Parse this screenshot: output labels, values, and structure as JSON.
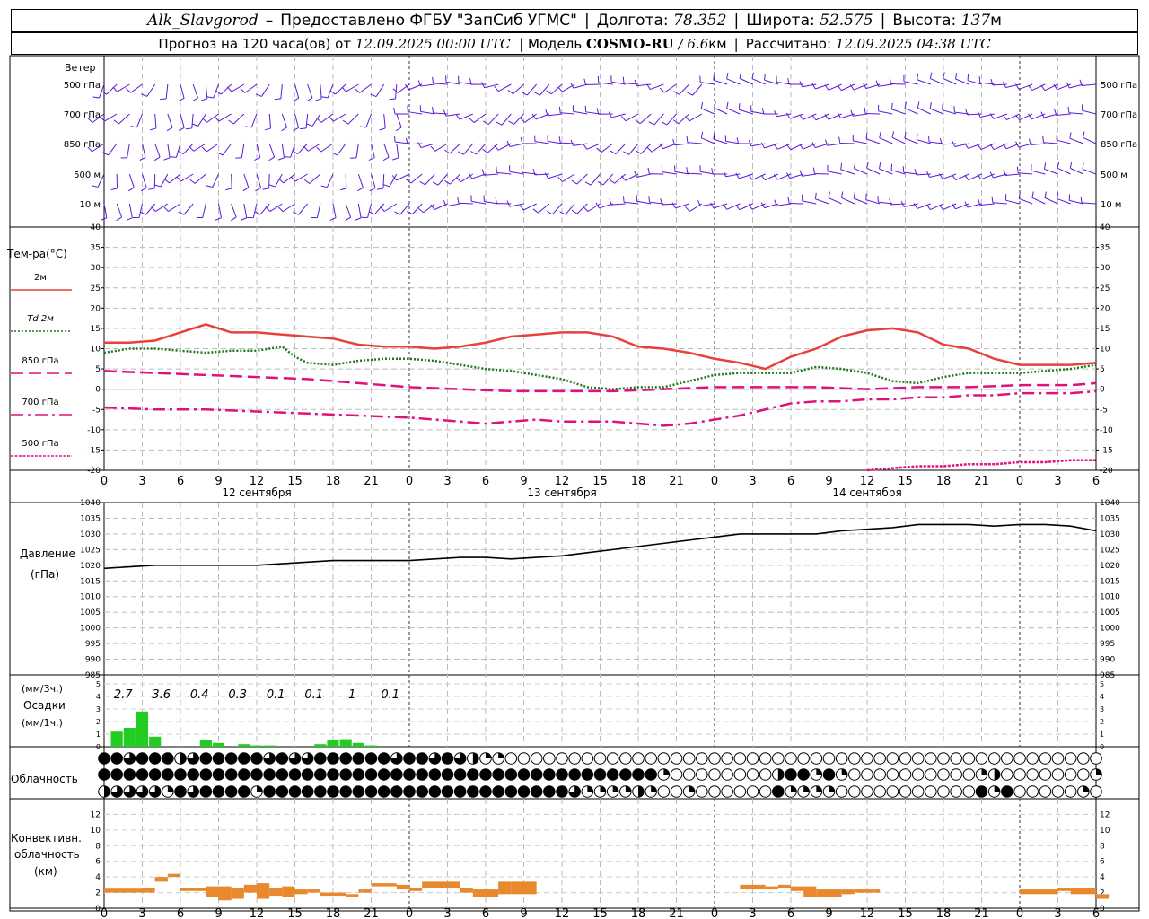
{
  "header": {
    "station": "Alk_Slavgorod",
    "dash": "–",
    "provider": "Предоставлено ФГБУ \"ЗапСиб УГМС\"",
    "lon_label": "Долгота:",
    "lon": "78.352",
    "lat_label": "Широта:",
    "lat": "52.575",
    "alt_label": "Высота:",
    "alt": "137",
    "alt_unit": "м",
    "forecast_label": "Прогноз на 120 часа(ов) от",
    "start": "12.09.2025 00:00 UTC",
    "model_label": "| Модель",
    "model": "COSMO-RU",
    "resolution": "/ 6.6",
    "res_unit": "км",
    "calc_label": "Рассчитано:",
    "calc": "12.09.2025 04:38 UTC"
  },
  "chart_data": [
    {
      "type": "wind-barbs",
      "title": "Ветер",
      "levels": [
        "500 гПа",
        "700 гПа",
        "850 гПа",
        "500 м",
        "10  м"
      ]
    },
    {
      "type": "line",
      "ylabel": "Тем-ра(°C)",
      "ylim": [
        -20,
        40
      ],
      "yticks": [
        40,
        35,
        30,
        25,
        20,
        15,
        10,
        5,
        0,
        -5,
        -10,
        -15,
        -20
      ],
      "xticks": [
        "0",
        "3",
        "6",
        "9",
        "12",
        "15",
        "18",
        "21",
        "0",
        "3",
        "6",
        "9",
        "12",
        "15",
        "18",
        "21",
        "0",
        "3",
        "6",
        "9",
        "12",
        "15",
        "18",
        "21",
        "0",
        "3",
        "6"
      ],
      "dates": [
        "12 сентября",
        "13 сентября",
        "14 сентября"
      ],
      "series": [
        {
          "name": "2м",
          "color": "#e8413c",
          "style": "solid",
          "x": [
            0,
            2,
            4,
            6,
            8,
            10,
            12,
            14,
            16,
            18,
            20,
            22,
            24,
            26,
            28,
            30,
            32,
            34,
            36,
            38,
            40,
            42,
            44,
            46,
            48,
            50,
            52,
            54,
            56,
            58,
            60,
            62,
            64,
            66,
            68,
            70,
            72,
            74,
            76,
            78
          ],
          "y": [
            11.5,
            11.5,
            12,
            14,
            16,
            14,
            14,
            13.5,
            13,
            12.5,
            11,
            10.5,
            10.5,
            10,
            10.5,
            11.5,
            13,
            13.5,
            14,
            14,
            13,
            10.5,
            10,
            9,
            7.5,
            6.5,
            5,
            8,
            10,
            13,
            14.5,
            15,
            14,
            11,
            10,
            7.5,
            6,
            6,
            6,
            6.5
          ]
        },
        {
          "name": "Td 2м",
          "color": "#1a7a1a",
          "style": "dot",
          "x": [
            0,
            2,
            4,
            6,
            8,
            10,
            12,
            14,
            15,
            16,
            18,
            20,
            22,
            24,
            26,
            28,
            30,
            32,
            34,
            36,
            38,
            40,
            42,
            44,
            46,
            48,
            50,
            52,
            54,
            56,
            58,
            60,
            62,
            64,
            66,
            68,
            70,
            72,
            74,
            76,
            78
          ],
          "y": [
            9,
            10,
            10,
            9.5,
            9,
            9.5,
            9.5,
            10.5,
            8,
            6.5,
            6,
            7,
            7.5,
            7.5,
            7,
            6,
            5,
            4.5,
            3.5,
            2.5,
            0.5,
            0,
            0.5,
            0.5,
            2,
            3.5,
            4,
            4,
            4,
            5.5,
            5,
            4,
            2,
            1.5,
            3,
            4,
            4,
            4,
            4.5,
            5,
            6
          ]
        },
        {
          "name": "850 гПа",
          "color": "#e0117f",
          "style": "dash",
          "x": [
            0,
            4,
            8,
            12,
            16,
            20,
            24,
            28,
            32,
            36,
            40,
            44,
            48,
            52,
            56,
            60,
            64,
            68,
            72,
            76,
            78
          ],
          "y": [
            4.5,
            4,
            3.5,
            3,
            2.5,
            1.5,
            0.5,
            0,
            -0.5,
            -0.5,
            -0.5,
            0,
            0.5,
            0.5,
            0.5,
            0,
            0.5,
            0.5,
            1,
            1,
            1.5
          ]
        },
        {
          "name": "700 гПа",
          "color": "#e0117f",
          "style": "dashdot",
          "x": [
            0,
            4,
            8,
            12,
            16,
            20,
            24,
            28,
            30,
            32,
            34,
            36,
            38,
            40,
            42,
            44,
            46,
            48,
            50,
            52,
            54,
            56,
            58,
            60,
            62,
            64,
            66,
            68,
            70,
            72,
            74,
            76,
            78
          ],
          "y": [
            -4.5,
            -5,
            -5,
            -5.5,
            -6,
            -6.5,
            -7,
            -8,
            -8.5,
            -8,
            -7.5,
            -8,
            -8,
            -8,
            -8.5,
            -9,
            -8.5,
            -7.5,
            -6.5,
            -5,
            -3.5,
            -3,
            -3,
            -2.5,
            -2.5,
            -2,
            -2,
            -1.5,
            -1.5,
            -1,
            -1,
            -1,
            -0.5
          ]
        },
        {
          "name": "500 гПа",
          "color": "#e0117f",
          "style": "dense-dot",
          "x": [
            60,
            62,
            64,
            66,
            68,
            70,
            72,
            74,
            76,
            78
          ],
          "y": [
            -20,
            -19.5,
            -19,
            -19,
            -18.5,
            -18.5,
            -18,
            -18,
            -17.5,
            -17.5
          ]
        }
      ]
    },
    {
      "type": "line",
      "ylabel": "Давление",
      "yunit": "(гПа)",
      "ylim": [
        985,
        1040
      ],
      "yticks": [
        1040,
        1035,
        1030,
        1025,
        1020,
        1015,
        1010,
        1005,
        1000,
        995,
        990,
        985
      ],
      "x": [
        0,
        2,
        4,
        6,
        8,
        10,
        12,
        14,
        16,
        18,
        20,
        22,
        24,
        26,
        28,
        30,
        32,
        34,
        36,
        38,
        40,
        42,
        44,
        46,
        48,
        50,
        52,
        54,
        56,
        58,
        60,
        62,
        64,
        66,
        68,
        70,
        72,
        74,
        76,
        78
      ],
      "y": [
        1019,
        1019.5,
        1020,
        1020,
        1020,
        1020,
        1020,
        1020.5,
        1021,
        1021.5,
        1021.5,
        1021.5,
        1021.5,
        1022,
        1022.5,
        1022.5,
        1022,
        1022.5,
        1023,
        1024,
        1025,
        1026,
        1027,
        1028,
        1029,
        1030,
        1030,
        1030,
        1030,
        1031,
        1031.5,
        1032,
        1033,
        1033,
        1033,
        1032.5,
        1033,
        1033,
        1032.5,
        1031
      ]
    },
    {
      "type": "bar",
      "ylabel": "Осадки",
      "yunit1": "(мм/3ч.)",
      "yunit2": "(мм/1ч.)",
      "ylim": [
        0,
        5
      ],
      "yticks": [
        5,
        4,
        3,
        2,
        1,
        0
      ],
      "totals": [
        {
          "x": 1.5,
          "label": "2.7"
        },
        {
          "x": 4.5,
          "label": "3.6"
        },
        {
          "x": 7.5,
          "label": "0.4"
        },
        {
          "x": 10.5,
          "label": "0.3"
        },
        {
          "x": 13.5,
          "label": "0.1"
        },
        {
          "x": 16.5,
          "label": "0.1"
        },
        {
          "x": 19.5,
          "label": "1"
        },
        {
          "x": 22.5,
          "label": "0.1"
        }
      ],
      "x": [
        1,
        2,
        3,
        4,
        8,
        9,
        11,
        12,
        13,
        17,
        18,
        19,
        20,
        21
      ],
      "values": [
        1.2,
        1.5,
        2.8,
        0.8,
        0.5,
        0.3,
        0.2,
        0.1,
        0.1,
        0.2,
        0.5,
        0.6,
        0.3,
        0.1
      ],
      "color": "#22cc22"
    },
    {
      "type": "cloud-cover",
      "ylabel": "Облачность",
      "rows": [
        [
          4,
          4,
          3,
          4,
          4,
          4,
          2,
          3,
          4,
          4,
          4,
          4,
          4,
          3,
          4,
          3,
          3,
          4,
          4,
          4,
          4,
          4,
          4,
          3,
          4,
          4,
          3,
          4,
          3,
          2,
          1,
          1,
          0,
          0,
          0,
          0,
          0,
          0,
          0,
          0,
          0,
          0,
          0,
          0,
          0,
          0,
          0,
          0,
          0,
          0,
          0,
          0,
          0,
          0,
          0,
          0,
          0,
          0,
          0,
          0,
          0,
          0,
          0,
          0,
          0,
          0,
          0,
          0,
          0,
          0,
          0,
          0,
          0,
          0,
          0,
          0,
          0,
          0,
          0,
          0,
          0
        ],
        [
          4,
          4,
          4,
          4,
          4,
          4,
          4,
          4,
          4,
          4,
          4,
          4,
          4,
          4,
          4,
          4,
          4,
          4,
          4,
          4,
          4,
          4,
          4,
          4,
          4,
          4,
          4,
          4,
          4,
          4,
          4,
          4,
          4,
          4,
          4,
          4,
          4,
          4,
          4,
          4,
          4,
          4,
          4,
          4,
          1,
          0,
          0,
          0,
          0,
          0,
          0,
          0,
          0,
          2,
          4,
          4,
          1,
          4,
          1,
          0,
          0,
          0,
          0,
          0,
          0,
          0,
          0,
          0,
          0,
          1,
          2,
          0,
          0,
          0,
          0,
          0,
          0,
          0,
          1,
          0,
          0
        ],
        [
          2,
          3,
          3,
          3,
          3,
          1,
          4,
          3,
          4,
          4,
          4,
          4,
          1,
          4,
          4,
          4,
          4,
          4,
          4,
          4,
          4,
          4,
          4,
          4,
          4,
          4,
          4,
          4,
          4,
          4,
          4,
          4,
          4,
          4,
          4,
          4,
          4,
          3,
          1,
          1,
          1,
          1,
          2,
          1,
          0,
          0,
          1,
          0,
          0,
          0,
          0,
          0,
          0,
          4,
          1,
          1,
          1,
          1,
          0,
          0,
          0,
          0,
          0,
          0,
          0,
          0,
          0,
          0,
          0,
          4,
          1,
          4,
          0,
          0,
          0,
          0,
          0,
          1,
          0,
          1,
          4
        ]
      ]
    },
    {
      "type": "bar",
      "ylabel": "Конвективн.",
      "ylabel2": "облачность",
      "yunit": "(км)",
      "ylim": [
        0,
        14
      ],
      "yticks": [
        12,
        10,
        8,
        6,
        4,
        2,
        0
      ],
      "color": "#e8892e",
      "segments": [
        [
          0,
          3,
          2.0,
          2.5
        ],
        [
          3,
          4,
          2.0,
          2.6
        ],
        [
          4,
          5,
          3.4,
          4.0
        ],
        [
          5,
          6,
          4.0,
          4.4
        ],
        [
          6,
          8,
          2.2,
          2.6
        ],
        [
          8,
          9,
          1.4,
          2.8
        ],
        [
          9,
          10,
          1.0,
          2.8
        ],
        [
          10,
          11,
          1.2,
          2.6
        ],
        [
          11,
          12,
          2.0,
          3.0
        ],
        [
          12,
          13,
          1.2,
          3.2
        ],
        [
          13,
          14,
          1.6,
          2.6
        ],
        [
          14,
          15,
          1.4,
          2.8
        ],
        [
          15,
          16,
          1.8,
          2.4
        ],
        [
          16,
          17,
          2.0,
          2.4
        ],
        [
          17,
          18,
          1.6,
          2.0
        ],
        [
          18,
          19,
          1.6,
          2.0
        ],
        [
          19,
          20,
          1.4,
          1.8
        ],
        [
          20,
          21,
          2.0,
          2.4
        ],
        [
          21,
          23,
          2.8,
          3.2
        ],
        [
          23,
          24,
          2.4,
          3.0
        ],
        [
          24,
          25,
          2.2,
          2.6
        ],
        [
          25,
          28,
          2.6,
          3.4
        ],
        [
          28,
          29,
          2.0,
          2.6
        ],
        [
          29,
          31,
          1.4,
          2.4
        ],
        [
          31,
          32,
          1.8,
          3.4
        ],
        [
          32,
          34,
          1.8,
          3.4
        ],
        [
          50,
          52,
          2.4,
          3.0
        ],
        [
          52,
          53,
          2.4,
          2.8
        ],
        [
          53,
          54,
          2.6,
          3.0
        ],
        [
          54,
          55,
          2.2,
          2.8
        ],
        [
          55,
          56,
          1.4,
          2.8
        ],
        [
          56,
          58,
          1.4,
          2.4
        ],
        [
          58,
          59,
          1.8,
          2.4
        ],
        [
          59,
          61,
          2.0,
          2.4
        ],
        [
          72,
          75,
          1.8,
          2.4
        ],
        [
          75,
          76,
          2.2,
          2.6
        ],
        [
          76,
          78,
          1.8,
          2.6
        ],
        [
          78,
          79,
          1.2,
          1.8
        ]
      ]
    }
  ]
}
